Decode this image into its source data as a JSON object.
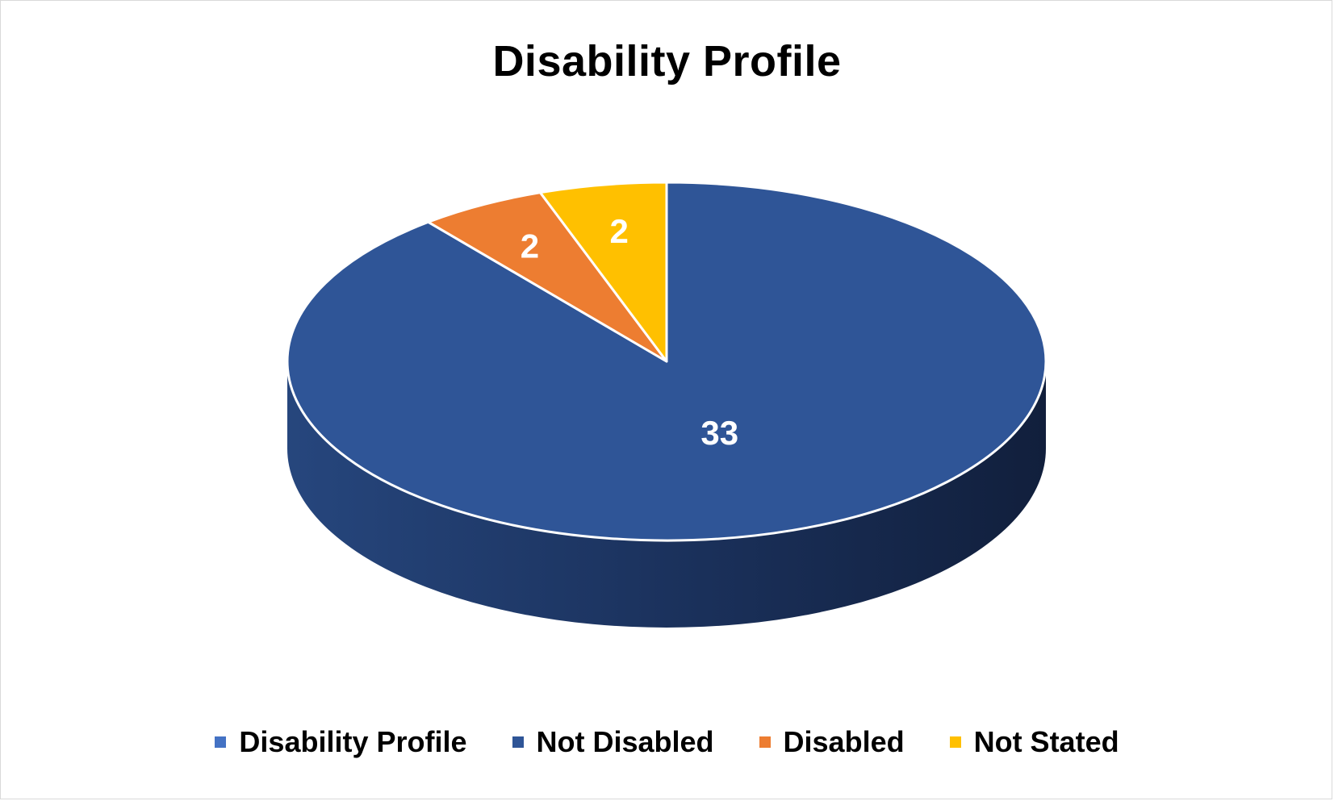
{
  "chart_data": {
    "type": "pie",
    "title": "Disability Profile",
    "three_d": true,
    "categories": [
      "Not Disabled",
      "Disabled",
      "Not Stated"
    ],
    "values": [
      33,
      2,
      2
    ],
    "labels": [
      "33",
      "2",
      "2"
    ],
    "colors": [
      "#2f5597",
      "#ed7d31",
      "#ffc000"
    ],
    "legend": {
      "position": "bottom",
      "entries": [
        {
          "label": "Disability Profile",
          "color": "#4472c4"
        },
        {
          "label": "Not Disabled",
          "color": "#2f5597"
        },
        {
          "label": "Disabled",
          "color": "#ed7d31"
        },
        {
          "label": "Not Stated",
          "color": "#ffc000"
        }
      ]
    }
  }
}
